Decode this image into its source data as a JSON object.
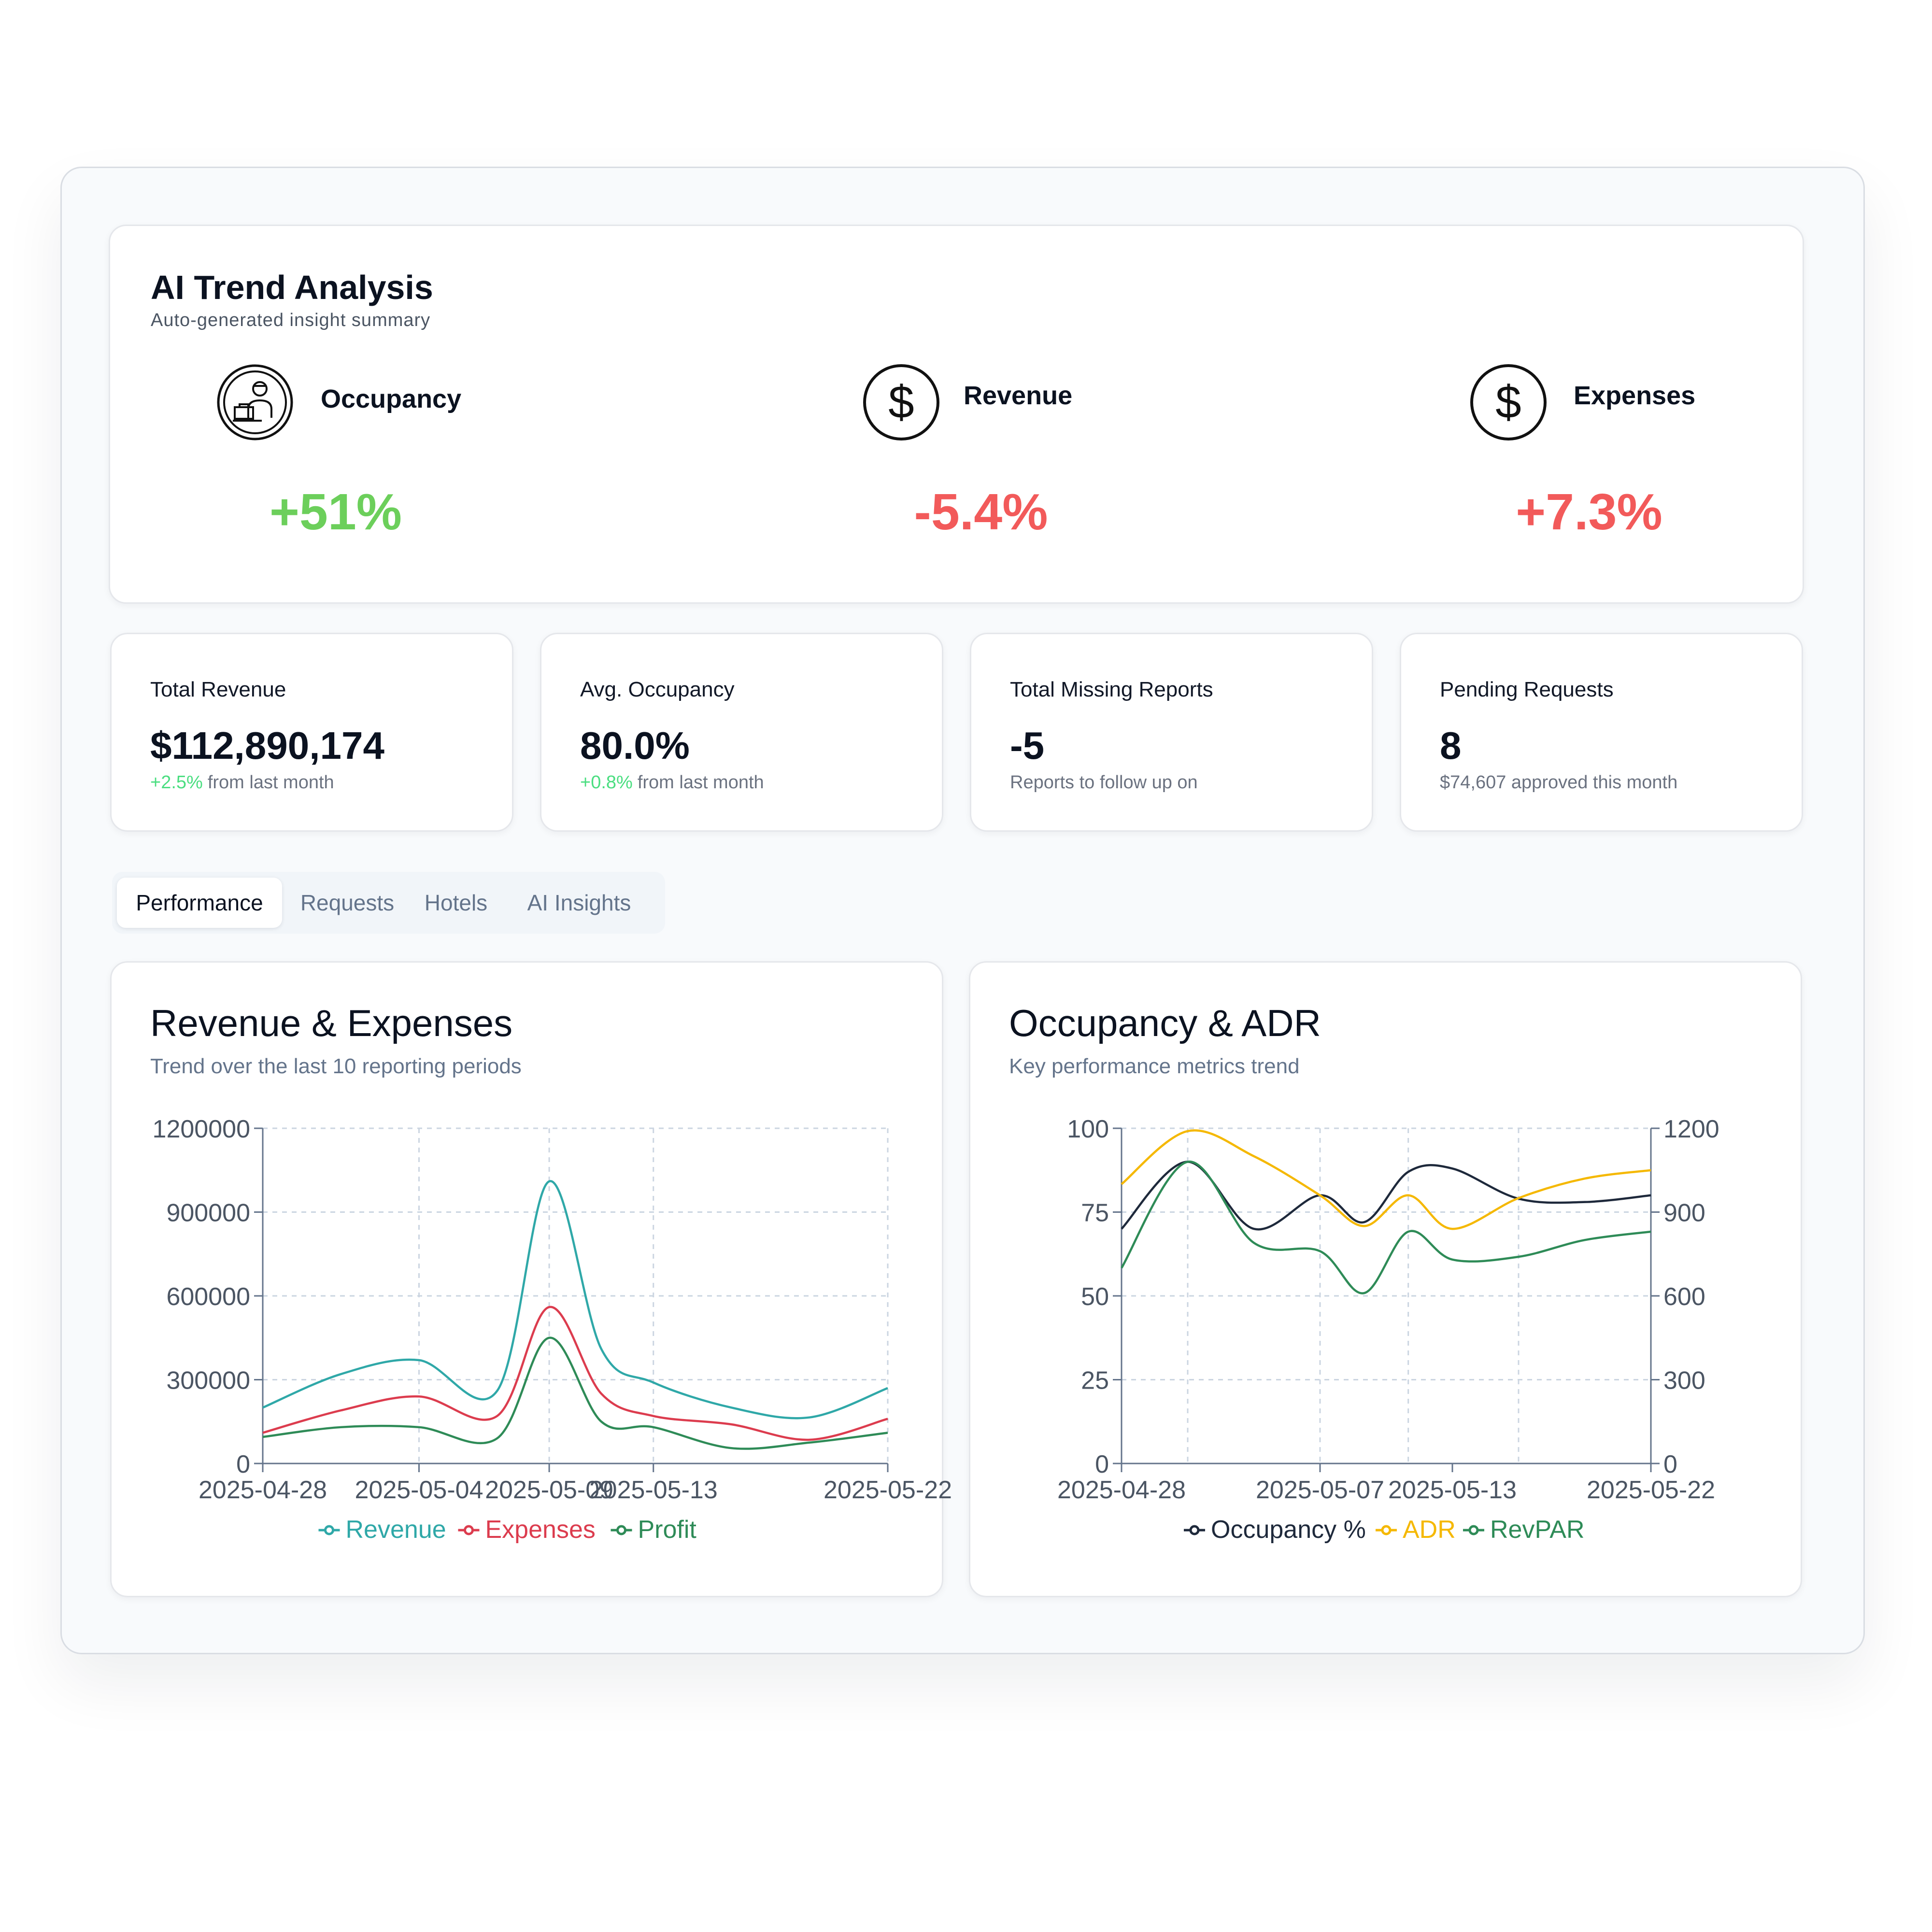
{
  "ai_trend": {
    "title": "AI Trend Analysis",
    "subtitle": "Auto-generated insight summary",
    "metrics": [
      {
        "label": "Occupancy",
        "value": "+51%",
        "color": "#6ccf5b",
        "icon": "hotel-staff-icon"
      },
      {
        "label": "Revenue",
        "value": "-5.4%",
        "color": "#f25a5a",
        "icon": "dollar-circle-icon"
      },
      {
        "label": "Expenses",
        "value": "+7.3%",
        "color": "#f25a5a",
        "icon": "dollar-circle-icon"
      }
    ]
  },
  "stats": [
    {
      "label": "Total Revenue",
      "value": "$112,890,174",
      "delta": "+2.5%",
      "note": "from last month"
    },
    {
      "label": "Avg. Occupancy",
      "value": "80.0%",
      "delta": "+0.8%",
      "note": "from last month"
    },
    {
      "label": "Total Missing Reports",
      "value": "-5",
      "delta": "",
      "note": "Reports to follow up on"
    },
    {
      "label": "Pending Requests",
      "value": "8",
      "delta": "",
      "note": "$74,607 approved this month"
    }
  ],
  "tabs": [
    {
      "label": "Performance",
      "active": true
    },
    {
      "label": "Requests",
      "active": false
    },
    {
      "label": "Hotels",
      "active": false
    },
    {
      "label": "AI Insights",
      "active": false
    }
  ],
  "charts": {
    "revenue_expenses": {
      "title": "Revenue & Expenses",
      "subtitle": "Trend over the last 10 reporting periods"
    },
    "occupancy_adr": {
      "title": "Occupancy & ADR",
      "subtitle": "Key performance metrics trend"
    }
  },
  "chart_data": [
    {
      "type": "line",
      "title": "Revenue & Expenses",
      "x": [
        "2025-04-28",
        "2025-05-01",
        "2025-05-04",
        "2025-05-07",
        "2025-05-09",
        "2025-05-11",
        "2025-05-13",
        "2025-05-16",
        "2025-05-19",
        "2025-05-22"
      ],
      "x_tick_labels": [
        "2025-04-28",
        "2025-05-04",
        "2025-05-09",
        "2025-05-13",
        "2025-05-22"
      ],
      "ylim": [
        0,
        1200000
      ],
      "y_ticks": [
        0,
        300000,
        600000,
        900000,
        1200000
      ],
      "grid": true,
      "legend": "bottom-center",
      "series": [
        {
          "name": "Revenue",
          "color": "#2fa8a8",
          "values": [
            200000,
            320000,
            370000,
            260000,
            1010000,
            410000,
            290000,
            200000,
            165000,
            270000
          ]
        },
        {
          "name": "Expenses",
          "color": "#dc3c4e",
          "values": [
            110000,
            190000,
            240000,
            170000,
            560000,
            250000,
            170000,
            140000,
            85000,
            160000
          ]
        },
        {
          "name": "Profit",
          "color": "#2e8b57",
          "values": [
            95000,
            130000,
            130000,
            90000,
            450000,
            150000,
            130000,
            55000,
            75000,
            110000
          ]
        }
      ]
    },
    {
      "type": "line",
      "title": "Occupancy & ADR",
      "x": [
        "2025-04-28",
        "2025-05-01",
        "2025-05-04",
        "2025-05-07",
        "2025-05-09",
        "2025-05-11",
        "2025-05-13",
        "2025-05-16",
        "2025-05-19",
        "2025-05-22"
      ],
      "x_tick_labels": [
        "2025-04-28",
        "2025-05-07",
        "2025-05-13",
        "2025-05-22"
      ],
      "ylim_left": [
        0,
        100
      ],
      "y_ticks_left": [
        0,
        25,
        50,
        75,
        100
      ],
      "ylim_right": [
        0,
        1200
      ],
      "y_ticks_right": [
        0,
        300,
        600,
        900,
        1200
      ],
      "grid": true,
      "legend": "bottom-center",
      "series": [
        {
          "name": "Occupancy %",
          "axis": "left",
          "color": "#1e293b",
          "values": [
            70,
            90,
            70,
            80,
            72,
            87,
            88,
            79,
            78,
            80
          ]
        },
        {
          "name": "ADR",
          "axis": "right",
          "color": "#f5b800",
          "values": [
            1000,
            1190,
            1100,
            960,
            850,
            960,
            840,
            950,
            1020,
            1050
          ]
        },
        {
          "name": "RevPAR",
          "axis": "right",
          "color": "#2e8b57",
          "values": [
            700,
            1080,
            790,
            760,
            610,
            830,
            730,
            740,
            800,
            830
          ]
        }
      ]
    }
  ]
}
